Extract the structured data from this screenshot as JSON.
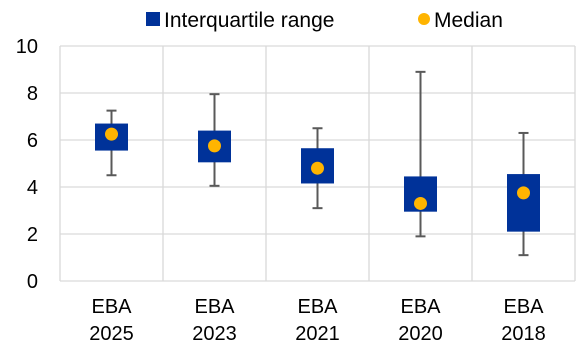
{
  "chart_data": {
    "type": "box",
    "categories": [
      [
        "EBA",
        "2025"
      ],
      [
        "EBA",
        "2023"
      ],
      [
        "EBA",
        "2021"
      ],
      [
        "EBA",
        "2020"
      ],
      [
        "EBA",
        "2018"
      ]
    ],
    "legend": {
      "position": "top",
      "items": [
        {
          "label": "Interquartile range",
          "symbol": "square",
          "color": "#003299"
        },
        {
          "label": "Median",
          "symbol": "circle",
          "color": "#FFB400"
        }
      ]
    },
    "series": [
      {
        "category": "EBA 2025",
        "min": 4.5,
        "q1": 5.55,
        "median": 6.25,
        "q3": 6.7,
        "max": 7.25
      },
      {
        "category": "EBA 2023",
        "min": 4.05,
        "q1": 5.05,
        "median": 5.75,
        "q3": 6.4,
        "max": 7.95
      },
      {
        "category": "EBA 2021",
        "min": 3.1,
        "q1": 4.15,
        "median": 4.8,
        "q3": 5.65,
        "max": 6.5
      },
      {
        "category": "EBA 2020",
        "min": 1.9,
        "q1": 2.95,
        "median": 3.3,
        "q3": 4.45,
        "max": 8.9
      },
      {
        "category": "EBA 2018",
        "min": 1.1,
        "q1": 2.1,
        "median": 3.75,
        "q3": 4.55,
        "max": 6.3
      }
    ],
    "y_ticks": [
      0,
      2,
      4,
      6,
      8,
      10
    ],
    "ylim": [
      0,
      10
    ],
    "grid": {
      "horizontal": true,
      "vertical": true
    },
    "colors": {
      "box": "#003299",
      "median": "#FFB400",
      "whisker": "#595959",
      "grid": "#D9D9D9"
    }
  }
}
